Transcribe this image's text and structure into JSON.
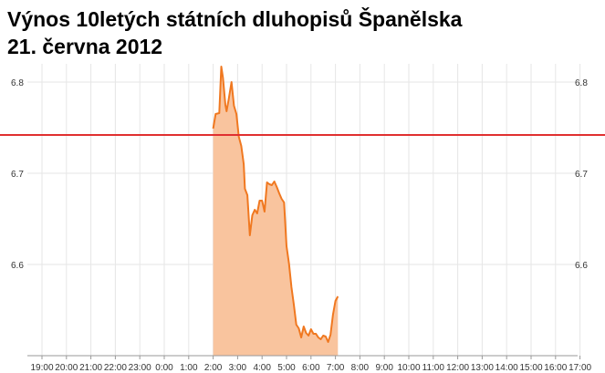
{
  "title_line1": "Výnos 10letých státních dluhopisů Španělska",
  "title_line2": "21. června 2012",
  "colors": {
    "line": "#f07820",
    "fill": "#f9c49e",
    "reference": "#e03030",
    "grid": "#e6e6e6",
    "axis": "#999999"
  },
  "chart_data": {
    "type": "area",
    "title": "Výnos 10letých státních dluhopisů Španělska 21. června 2012",
    "xlabel": "",
    "ylabel": "",
    "x_ticks": [
      "19:00",
      "20:00",
      "21:00",
      "22:00",
      "23:00",
      "0:00",
      "1:00",
      "2:00",
      "3:00",
      "4:00",
      "5:00",
      "6:00",
      "7:00",
      "8:00",
      "9:00",
      "10:00",
      "11:00",
      "12:00",
      "13:00",
      "14:00",
      "15:00",
      "16:00",
      "17:00"
    ],
    "y_ticks": [
      6.6,
      6.7,
      6.8
    ],
    "ylim": [
      6.5,
      6.82
    ],
    "grid": true,
    "reference_line": {
      "value": 6.742,
      "color": "#e03030"
    },
    "series": [
      {
        "x": [
          "2:00",
          "2:06",
          "2:15",
          "2:20",
          "2:24",
          "2:30",
          "2:33",
          "2:38",
          "2:45",
          "2:51",
          "2:57",
          "3:03",
          "3:09",
          "3:15",
          "3:18",
          "3:24",
          "3:30",
          "3:36",
          "3:42",
          "3:48",
          "3:54",
          "4:00",
          "4:06",
          "4:12",
          "4:18",
          "4:24",
          "4:30",
          "4:36",
          "4:42",
          "4:48",
          "4:54",
          "5:00",
          "5:06",
          "5:12",
          "5:18",
          "5:24",
          "5:30",
          "5:36",
          "5:42",
          "5:48",
          "5:54",
          "6:00",
          "6:06",
          "6:12",
          "6:18",
          "6:24",
          "6:30",
          "6:36",
          "6:42",
          "6:48",
          "6:54",
          "7:00",
          "7:06"
        ],
        "values": [
          6.749,
          6.765,
          6.766,
          6.817,
          6.805,
          6.775,
          6.768,
          6.781,
          6.8,
          6.774,
          6.765,
          6.74,
          6.73,
          6.71,
          6.683,
          6.676,
          6.632,
          6.654,
          6.66,
          6.656,
          6.67,
          6.67,
          6.658,
          6.69,
          6.688,
          6.687,
          6.691,
          6.685,
          6.678,
          6.672,
          6.668,
          6.62,
          6.601,
          6.575,
          6.556,
          6.534,
          6.53,
          6.52,
          6.532,
          6.525,
          6.522,
          6.529,
          6.524,
          6.524,
          6.52,
          6.518,
          6.522,
          6.521,
          6.515,
          6.523,
          6.545,
          6.56,
          6.565
        ]
      }
    ]
  }
}
